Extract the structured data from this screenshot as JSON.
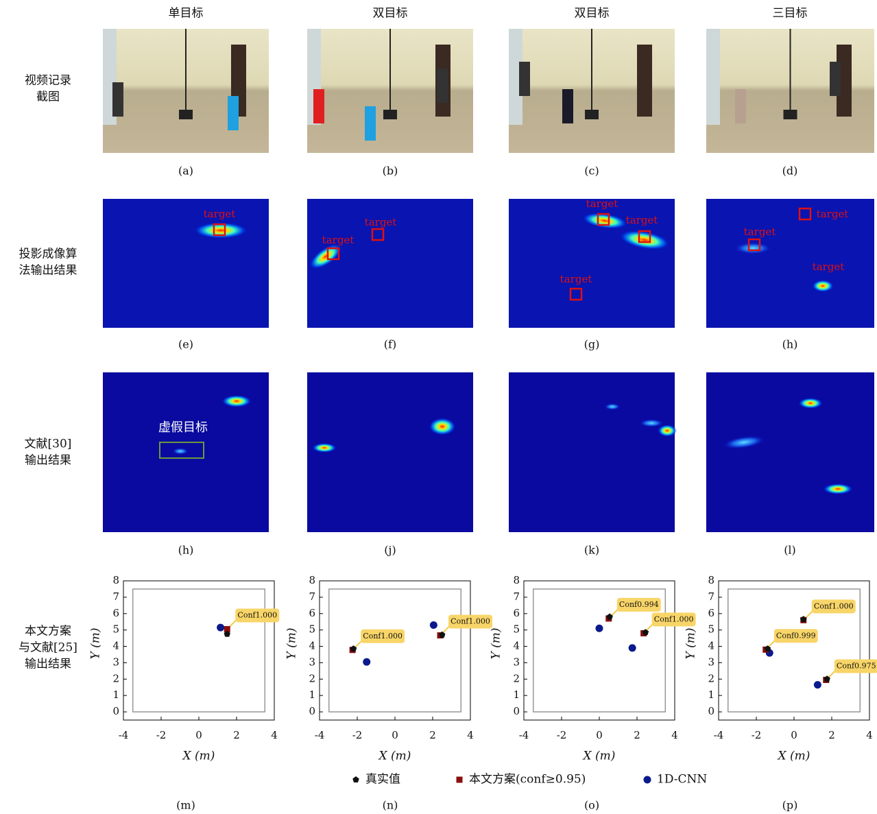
{
  "column_titles": [
    "单目标",
    "双目标",
    "双目标",
    "三目标"
  ],
  "row_labels": [
    [
      "视频记录",
      "截图"
    ],
    [
      "投影成像算",
      "法输出结果"
    ],
    [
      "文献[30]",
      "输出结果"
    ],
    [
      "本文方案",
      "与文献[25]",
      "输出结果"
    ]
  ],
  "captions": [
    [
      "(a)",
      "(b)",
      "(c)",
      "(d)"
    ],
    [
      "(e)",
      "(f)",
      "(g)",
      "(h)"
    ],
    [
      "(h)",
      "(j)",
      "(k)",
      "(l)"
    ],
    [
      "(m)",
      "(n)",
      "(o)",
      "(p)"
    ]
  ],
  "heatmap_labels": [
    [
      "target"
    ],
    [
      "target",
      "target"
    ],
    [
      "target",
      "target",
      "target"
    ],
    [
      "target",
      "target",
      "target"
    ]
  ],
  "false_target_label": "虚假目标",
  "legend": [
    {
      "name": "真实值",
      "color": "#111111"
    },
    {
      "name": "本文方案(conf≥0.95)",
      "color": "#8b0d0d"
    },
    {
      "name": "1D-CNN",
      "color": "#0a1a8c"
    }
  ],
  "chart_data": [
    {
      "type": "scatter",
      "xlabel": "X (m)",
      "ylabel": "Y (m)",
      "xlim": [
        -4,
        4
      ],
      "ylim": [
        -0.5,
        8
      ],
      "xticks": [
        -4,
        -2,
        0,
        2,
        4
      ],
      "yticks": [
        0,
        1,
        2,
        3,
        4,
        5,
        6,
        7,
        8
      ],
      "room_x": [
        -3.5,
        3.5
      ],
      "room_y": [
        0,
        7.5
      ],
      "series": [
        {
          "x": [
            1.5
          ],
          "values": [
            4.75
          ]
        },
        {
          "x": [
            1.5
          ],
          "values": [
            5.05
          ]
        },
        {
          "x": [
            1.15
          ],
          "values": [
            5.15
          ]
        }
      ],
      "conf_labels": [
        "Conf1.000"
      ]
    },
    {
      "type": "scatter",
      "xlabel": "X (m)",
      "ylabel": "Y (m)",
      "xlim": [
        -4,
        4
      ],
      "ylim": [
        -0.5,
        8
      ],
      "xticks": [
        -4,
        -2,
        0,
        2,
        4
      ],
      "yticks": [
        0,
        1,
        2,
        3,
        4,
        5,
        6,
        7,
        8
      ],
      "room_x": [
        -3.5,
        3.5
      ],
      "room_y": [
        0,
        7.5
      ],
      "series": [
        {
          "x": [
            -2.2,
            2.5
          ],
          "values": [
            3.85,
            4.7
          ]
        },
        {
          "x": [
            -2.25,
            2.4
          ],
          "values": [
            3.78,
            4.67
          ]
        },
        {
          "x": [
            -1.5,
            2.05
          ],
          "values": [
            3.05,
            5.3
          ]
        }
      ],
      "conf_labels": [
        "Conf1.000",
        "Conf1.000"
      ]
    },
    {
      "type": "scatter",
      "xlabel": "X (m)",
      "ylabel": "Y (m)",
      "xlim": [
        -4,
        4
      ],
      "ylim": [
        -0.5,
        8
      ],
      "xticks": [
        -4,
        -2,
        0,
        2,
        4
      ],
      "yticks": [
        0,
        1,
        2,
        3,
        4,
        5,
        6,
        7,
        8
      ],
      "room_x": [
        -3.5,
        3.5
      ],
      "room_y": [
        0,
        7.5
      ],
      "series": [
        {
          "x": [
            0.55,
            2.45
          ],
          "values": [
            5.8,
            4.85
          ]
        },
        {
          "x": [
            0.5,
            2.35
          ],
          "values": [
            5.7,
            4.8
          ]
        },
        {
          "x": [
            0,
            1.75
          ],
          "values": [
            5.1,
            3.9
          ]
        }
      ],
      "conf_labels": [
        "Conf0.994",
        "Conf1.000"
      ]
    },
    {
      "type": "scatter",
      "xlabel": "X (m)",
      "ylabel": "Y (m)",
      "xlim": [
        -4,
        4
      ],
      "ylim": [
        -0.5,
        8
      ],
      "xticks": [
        -4,
        -2,
        0,
        2,
        4
      ],
      "yticks": [
        0,
        1,
        2,
        3,
        4,
        5,
        6,
        7,
        8
      ],
      "room_x": [
        -3.5,
        3.5
      ],
      "room_y": [
        0,
        7.5
      ],
      "series": [
        {
          "x": [
            0.5,
            -1.4,
            1.75
          ],
          "values": [
            5.65,
            3.85,
            2.0
          ]
        },
        {
          "x": [
            0.5,
            -1.5,
            1.7
          ],
          "values": [
            5.6,
            3.8,
            1.95
          ]
        },
        {
          "x": [
            -1.3,
            1.25
          ],
          "values": [
            3.6,
            1.65
          ]
        }
      ],
      "conf_labels": [
        "Conf1.000",
        "Conf0.999",
        "Conf0.975"
      ]
    }
  ]
}
